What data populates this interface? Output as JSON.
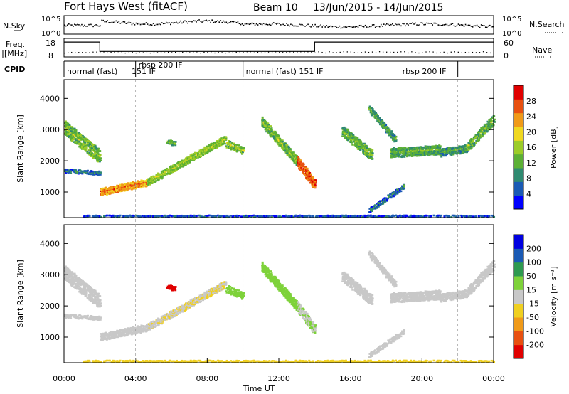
{
  "header": {
    "station": "Fort Hays West (fitACF)",
    "beam": "Beam 10",
    "date_range": "13/Jun/2015 - 14/Jun/2015"
  },
  "top_panels": {
    "nsky_label": "N.Sky",
    "nsky_ticks": [
      "10^5",
      "10^0"
    ],
    "nsearch_label": "N.Search",
    "nsearch_ticks": [
      "10^5",
      "10^0"
    ],
    "freq_label_1": "Freq.",
    "freq_label_2": "[MHz]",
    "freq_ticks": [
      "18",
      "8"
    ],
    "nave_label": "Nave",
    "nave_ticks": [
      "60",
      "0"
    ],
    "cpid_label": "CPID"
  },
  "cpid_segments": [
    {
      "label": "normal (fast)",
      "start": 0,
      "end": 4
    },
    {
      "label": "rbsp 200 IF",
      "start": 4,
      "end": 10
    },
    {
      "label": "normal (fast) 151 IF",
      "start": 10,
      "end": 22
    },
    {
      "label": "rbsp 200 IF",
      "start": 22,
      "end": 24
    }
  ],
  "cpid_extra_label": "151 IF",
  "chart_data": {
    "type": "heatmap",
    "x_label": "Time UT",
    "x_ticks": [
      "00:00",
      "04:00",
      "08:00",
      "12:00",
      "16:00",
      "20:00",
      "00:00"
    ],
    "y_label": "Slant Range [km]",
    "y_ticks": [
      "1000",
      "2000",
      "3000",
      "4000"
    ],
    "y_range": [
      180,
      4600
    ],
    "frequency_trace": {
      "segments": [
        [
          0,
          2,
          17.5
        ],
        [
          2,
          14,
          11.5
        ],
        [
          14,
          24,
          17.5
        ]
      ]
    },
    "panels": [
      {
        "name": "power",
        "colorbar_label": "Power [dB]",
        "colorbar_ticks": [
          "28",
          "24",
          "20",
          "16",
          "12",
          "8",
          "4"
        ],
        "scale_min": 0,
        "scale_max": 30,
        "colors": [
          "#0000ff",
          "#1a5ab4",
          "#2f8a70",
          "#5cb035",
          "#9ccc28",
          "#f0d820",
          "#f09a18",
          "#e85010",
          "#e00000"
        ]
      },
      {
        "name": "velocity",
        "colorbar_label": "Velocity [m s⁻¹]",
        "colorbar_ticks": [
          "200",
          "100",
          "50",
          "15",
          "-15",
          "-50",
          "-100",
          "-200"
        ],
        "scale_min": -250,
        "scale_max": 250,
        "colors": [
          "#e00000",
          "#e85010",
          "#f09a18",
          "#f0d020",
          "#c8c8c8",
          "#7ed23a",
          "#2e9a50",
          "#1a5ab4",
          "#0000e0"
        ]
      }
    ],
    "echo_bands": [
      {
        "t0": 0.0,
        "t1": 2.0,
        "r0": 3100,
        "r1": 2150,
        "w": 450,
        "p": 12,
        "v": 0
      },
      {
        "t0": 0.0,
        "t1": 2.0,
        "r0": 1720,
        "r1": 1650,
        "w": 120,
        "p": 5,
        "v": 0
      },
      {
        "t0": 2.0,
        "t1": 4.6,
        "r0": 1050,
        "r1": 1350,
        "w": 230,
        "p": 21,
        "v": -10
      },
      {
        "t0": 4.6,
        "t1": 9.0,
        "r0": 1350,
        "r1": 2750,
        "w": 220,
        "p": 13,
        "v": -25
      },
      {
        "t0": 9.0,
        "t1": 10.0,
        "r0": 2600,
        "r1": 2350,
        "w": 250,
        "p": 12,
        "v": 40
      },
      {
        "t0": 11.0,
        "t1": 13.0,
        "r0": 3300,
        "r1": 2000,
        "w": 300,
        "p": 12,
        "v": 45
      },
      {
        "t0": 13.0,
        "t1": 14.0,
        "r0": 2000,
        "r1": 1250,
        "w": 350,
        "p": 24,
        "v": 25
      },
      {
        "t0": 15.5,
        "t1": 17.2,
        "r0": 3000,
        "r1": 2200,
        "w": 350,
        "p": 11,
        "v": 0
      },
      {
        "t0": 17.0,
        "t1": 18.5,
        "r0": 3700,
        "r1": 2700,
        "w": 220,
        "p": 9,
        "v": 0
      },
      {
        "t0": 18.2,
        "t1": 21.0,
        "r0": 2300,
        "r1": 2400,
        "w": 300,
        "p": 10,
        "v": -5
      },
      {
        "t0": 21.0,
        "t1": 22.5,
        "r0": 2300,
        "r1": 2450,
        "w": 250,
        "p": 9,
        "v": 0
      },
      {
        "t0": 22.5,
        "t1": 24.0,
        "r0": 2500,
        "r1": 3400,
        "w": 300,
        "p": 11,
        "v": -10
      },
      {
        "t0": 17.0,
        "t1": 19.0,
        "r0": 450,
        "r1": 1250,
        "w": 150,
        "p": 5,
        "v": 0
      },
      {
        "t0": 1.0,
        "t1": 24.0,
        "r0": 240,
        "r1": 240,
        "w": 120,
        "p": 4,
        "v": -60
      },
      {
        "t0": 5.7,
        "t1": 6.2,
        "r0": 2650,
        "r1": 2600,
        "w": 150,
        "p": 10,
        "v": -210
      }
    ]
  }
}
